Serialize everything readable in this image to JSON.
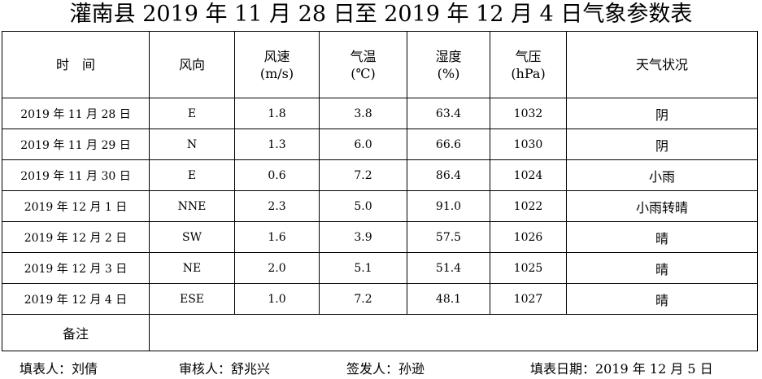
{
  "title": "灌南县 2019 年 11 月 28 日至 2019 年 12 月 4 日气象参数表",
  "headers": {
    "time": "时　间",
    "wind_dir": "风向",
    "wind_speed": "风速",
    "wind_speed_unit": "(m/s)",
    "temp": "气温",
    "temp_unit": "(℃)",
    "humidity": "湿度",
    "humidity_unit": "(%)",
    "pressure": "气压",
    "pressure_unit": "(hPa)",
    "condition": "天气状况"
  },
  "rows": [
    {
      "date": "2019 年 11 月 28 日",
      "wind_dir": "E",
      "wind_speed": "1.8",
      "temp": "3.8",
      "humidity": "63.4",
      "pressure": "1032",
      "condition": "阴"
    },
    {
      "date": "2019 年 11 月 29 日",
      "wind_dir": "N",
      "wind_speed": "1.3",
      "temp": "6.0",
      "humidity": "66.6",
      "pressure": "1030",
      "condition": "阴"
    },
    {
      "date": "2019 年 11 月 30 日",
      "wind_dir": "E",
      "wind_speed": "0.6",
      "temp": "7.2",
      "humidity": "86.4",
      "pressure": "1024",
      "condition": "小雨"
    },
    {
      "date": "2019 年 12 月 1 日",
      "wind_dir": "NNE",
      "wind_speed": "2.3",
      "temp": "5.0",
      "humidity": "91.0",
      "pressure": "1022",
      "condition": "小雨转晴"
    },
    {
      "date": "2019 年 12 月 2 日",
      "wind_dir": "SW",
      "wind_speed": "1.6",
      "temp": "3.9",
      "humidity": "57.5",
      "pressure": "1026",
      "condition": "晴"
    },
    {
      "date": "2019 年 12 月 3 日",
      "wind_dir": "NE",
      "wind_speed": "2.0",
      "temp": "5.1",
      "humidity": "51.4",
      "pressure": "1025",
      "condition": "晴"
    },
    {
      "date": "2019 年 12 月 4 日",
      "wind_dir": "ESE",
      "wind_speed": "1.0",
      "temp": "7.2",
      "humidity": "48.1",
      "pressure": "1027",
      "condition": "晴"
    }
  ],
  "notes": {
    "label": "备注",
    "value": ""
  },
  "footer": {
    "filler": "填表人：刘倩",
    "reviewer": "审核人：舒兆兴",
    "issuer": "签发人：孙逊",
    "fill_date": "填表日期：2019 年 12 月 5 日"
  }
}
